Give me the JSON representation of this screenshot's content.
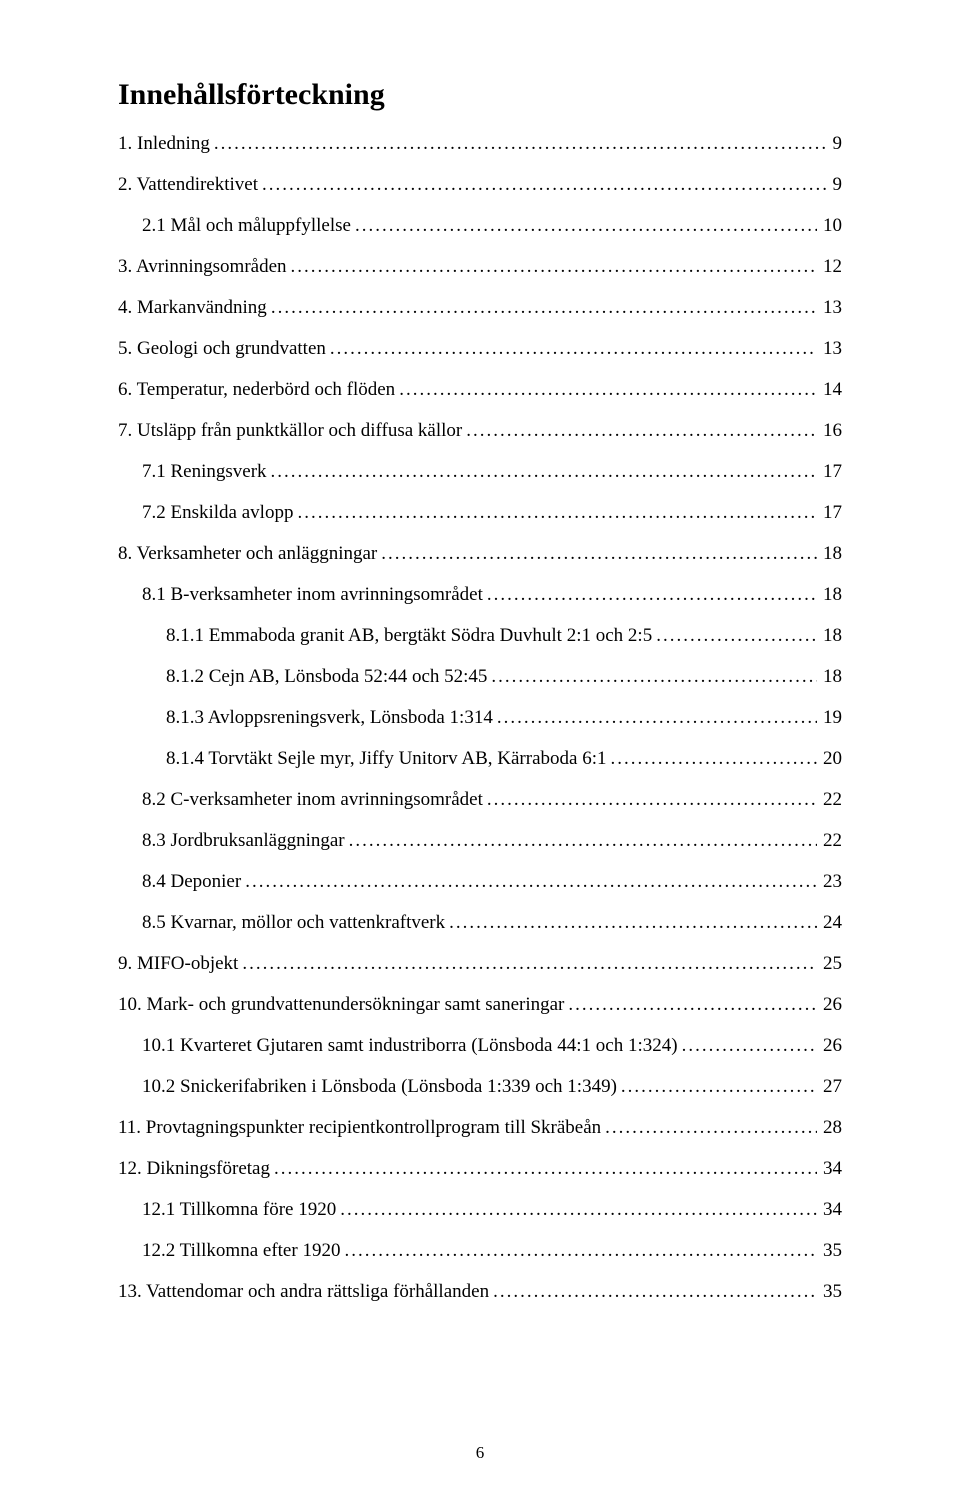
{
  "title": "Innehållsförteckning",
  "page_number": "6",
  "entries": [
    {
      "level": 1,
      "label": "1. Inledning",
      "page": "9"
    },
    {
      "level": 1,
      "label": "2. Vattendirektivet",
      "page": "9"
    },
    {
      "level": 2,
      "label": "2.1 Mål och måluppfyllelse",
      "page": "10"
    },
    {
      "level": 1,
      "label": "3. Avrinningsområden",
      "page": "12"
    },
    {
      "level": 1,
      "label": "4. Markanvändning",
      "page": "13"
    },
    {
      "level": 1,
      "label": "5. Geologi och grundvatten",
      "page": "13"
    },
    {
      "level": 1,
      "label": "6. Temperatur, nederbörd och flöden",
      "page": "14"
    },
    {
      "level": 1,
      "label": "7. Utsläpp från punktkällor och diffusa källor",
      "page": "16"
    },
    {
      "level": 2,
      "label": "7.1 Reningsverk",
      "page": "17"
    },
    {
      "level": 2,
      "label": "7.2 Enskilda avlopp",
      "page": "17"
    },
    {
      "level": 1,
      "label": "8. Verksamheter och anläggningar",
      "page": "18"
    },
    {
      "level": 2,
      "label": "8.1 B-verksamheter inom avrinningsområdet",
      "page": "18"
    },
    {
      "level": 3,
      "label": "8.1.1 Emmaboda granit AB, bergtäkt Södra Duvhult 2:1 och 2:5",
      "page": "18"
    },
    {
      "level": 3,
      "label": "8.1.2 Cejn AB, Lönsboda 52:44 och 52:45",
      "page": "18"
    },
    {
      "level": 3,
      "label": "8.1.3 Avloppsreningsverk, Lönsboda 1:314",
      "page": "19"
    },
    {
      "level": 3,
      "label": "8.1.4 Torvtäkt Sejle myr, Jiffy Unitorv AB, Kärraboda 6:1",
      "page": "20"
    },
    {
      "level": 2,
      "label": "8.2 C-verksamheter inom avrinningsområdet",
      "page": "22"
    },
    {
      "level": 2,
      "label": "8.3 Jordbruksanläggningar",
      "page": "22"
    },
    {
      "level": 2,
      "label": "8.4 Deponier",
      "page": "23"
    },
    {
      "level": 2,
      "label": "8.5 Kvarnar, möllor och vattenkraftverk",
      "page": "24"
    },
    {
      "level": 1,
      "label": "9. MIFO-objekt",
      "page": "25"
    },
    {
      "level": 1,
      "label": "10. Mark- och grundvattenundersökningar samt saneringar",
      "page": "26"
    },
    {
      "level": 2,
      "label": "10.1 Kvarteret Gjutaren samt industriborra (Lönsboda 44:1 och 1:324)",
      "page": "26"
    },
    {
      "level": 2,
      "label": "10.2 Snickerifabriken i Lönsboda (Lönsboda 1:339 och 1:349)",
      "page": "27"
    },
    {
      "level": 1,
      "label": "11. Provtagningspunkter recipientkontrollprogram till Skräbeån",
      "page": "28"
    },
    {
      "level": 1,
      "label": "12. Dikningsföretag",
      "page": "34"
    },
    {
      "level": 2,
      "label": "12.1 Tillkomna före 1920",
      "page": "34"
    },
    {
      "level": 2,
      "label": "12.2 Tillkomna efter 1920",
      "page": "35"
    },
    {
      "level": 1,
      "label": "13. Vattendomar och andra rättsliga förhållanden",
      "page": "35"
    }
  ]
}
